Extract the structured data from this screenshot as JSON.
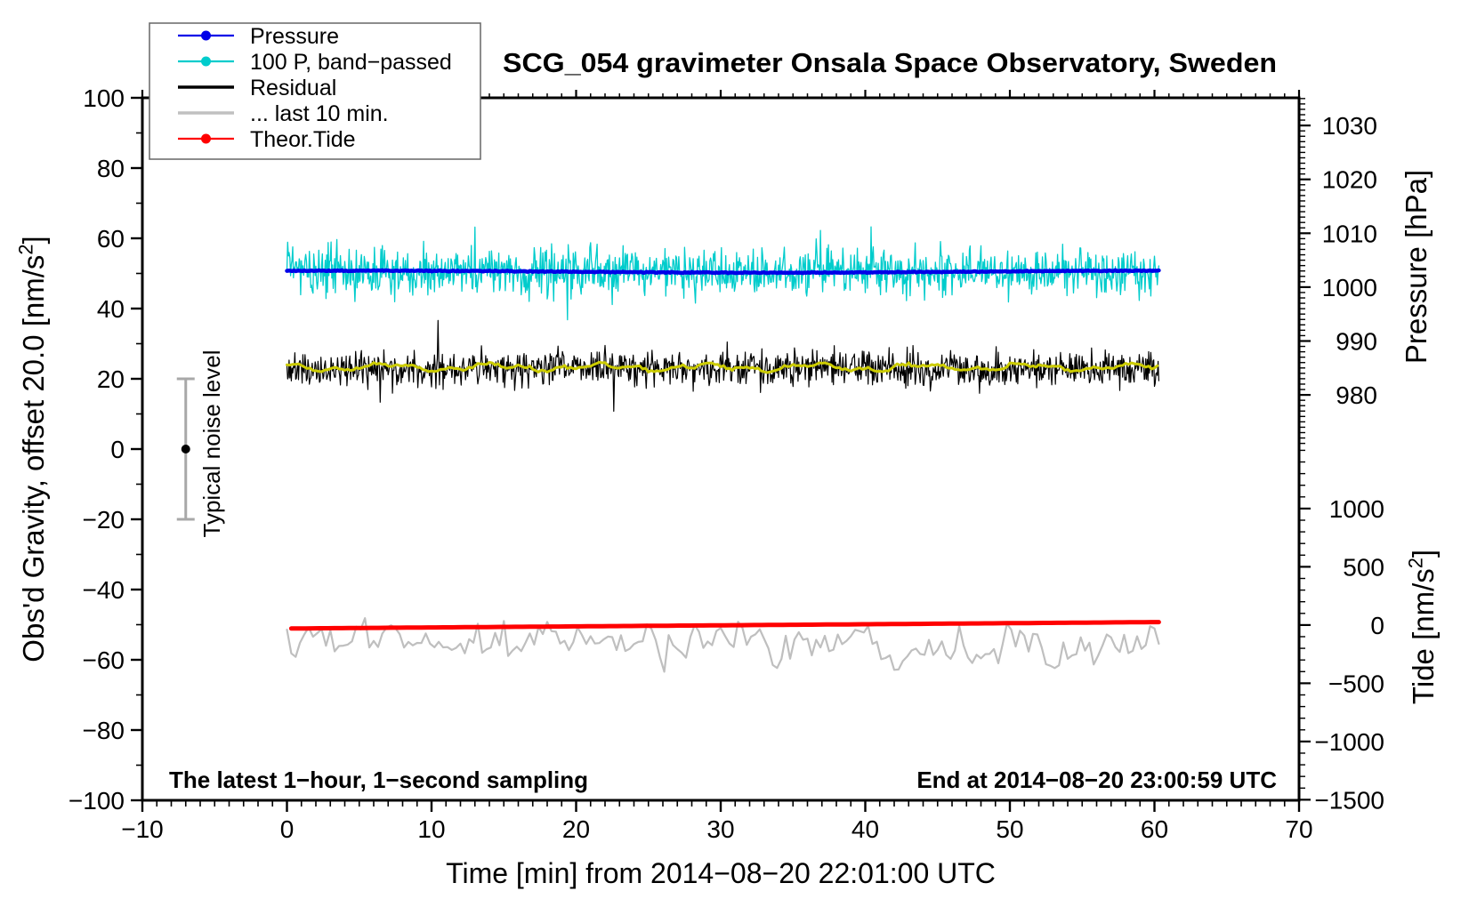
{
  "chart_data": {
    "type": "line",
    "title": "SCG_054 gravimeter Onsala Space Observatory, Sweden",
    "x_axis": {
      "label": "Time [min] from 2014−08−20 22:01:00 UTC",
      "min": -10,
      "max": 70,
      "major_tick": 10,
      "minor_tick": 1,
      "tick_labels": [
        -10,
        0,
        10,
        20,
        30,
        40,
        50,
        60,
        70
      ]
    },
    "y_axis_left": {
      "label": "Obs'd Gravity, offset 20.0 [nm/s²]",
      "min": -100,
      "max": 100,
      "major_tick": 20,
      "minor_tick": 10,
      "tick_labels": [
        100,
        80,
        60,
        40,
        20,
        0,
        -20,
        -40,
        -60,
        -80,
        -100
      ]
    },
    "y_axis_pressure": {
      "label": "Pressure [hPa]",
      "tick_labels": [
        1030,
        1020,
        1010,
        1000,
        990,
        980
      ],
      "minor_tick_hPa": 1,
      "minor_range": [
        971,
        1035
      ],
      "anchor_hPa": 1000,
      "anchor_gravity": 46.1,
      "gravity_per_hPa": 1.534
    },
    "y_axis_tide": {
      "label": "Tide [nm/s²]",
      "tick_labels": [
        1000,
        500,
        0,
        -500,
        -1000,
        -1500
      ],
      "minor_tick": 100,
      "minor_range": [
        -1500,
        1500
      ],
      "anchor_value": 0,
      "anchor_gravity": -50.1,
      "gravity_per_unit": 0.03316
    },
    "legend": [
      {
        "label": "Pressure",
        "color": "#0000E8",
        "marker": true,
        "thick": false
      },
      {
        "label": "100 P, band−passed",
        "color": "#00CCCC",
        "marker": true,
        "thick": false
      },
      {
        "label": "Residual",
        "color": "#000000",
        "marker": false,
        "thick": true
      },
      {
        "label": "... last 10 min.",
        "color": "#C0C0C0",
        "marker": false,
        "thick": true
      },
      {
        "label": "Theor.Tide",
        "color": "#FF0000",
        "marker": true,
        "thick": false
      }
    ],
    "series": [
      {
        "id": "last10",
        "label": "... last 10 min.",
        "color": "#BFBFBF",
        "width": 2.2,
        "t_start": 0,
        "t_end": 60.3,
        "mean_gravity": -54.8,
        "amplitude_gravity": 4.5
      },
      {
        "id": "tide",
        "label": "Theor.Tide",
        "color": "#FF0000",
        "width": 5.0,
        "t_start": 0.3,
        "t_end": 60.3,
        "tide_start": -30,
        "tide_end": 25
      },
      {
        "id": "band",
        "label": "100 P, band−passed",
        "color": "#00CCCC",
        "width": 1.3,
        "t_start": 0,
        "t_end": 60.3,
        "mean_gravity": 50.5,
        "mean_hPa": 1002.9,
        "sigma_gravity": 3.2,
        "spike_gravity": 14
      },
      {
        "id": "pressure",
        "label": "Pressure",
        "color": "#0000E8",
        "width": 4.5,
        "t_start": 0,
        "t_end": 60.3,
        "mean_gravity": 50.5,
        "mean_hPa": 1002.9
      },
      {
        "id": "residual",
        "label": "Residual",
        "color": "#000000",
        "width": 1.2,
        "t_start": 0,
        "t_end": 60.3,
        "mean_gravity": 22.9,
        "sigma_gravity": 2.4,
        "spike_gravity": 9
      },
      {
        "id": "smooth",
        "label": "Residual smoothed",
        "color": "#CCCC00",
        "width": 3.0,
        "t_start": 0,
        "t_end": 60.3,
        "mean_gravity": 23.3,
        "amplitude_gravity": 1.2
      }
    ],
    "noise_marker": {
      "label": "Typical noise level",
      "t": -7,
      "gravity_center": 0,
      "gravity_half_range": 20,
      "bar_color": "#A8A8A8",
      "dot_color": "#000000"
    },
    "annotations": {
      "sampling": "The latest 1−hour, 1−second sampling",
      "end": "End at 2014−08−20 23:00:59 UTC"
    },
    "layout_hints": {
      "legend_position": "top-left",
      "grid": false,
      "frame": "box with outward ticks"
    }
  }
}
